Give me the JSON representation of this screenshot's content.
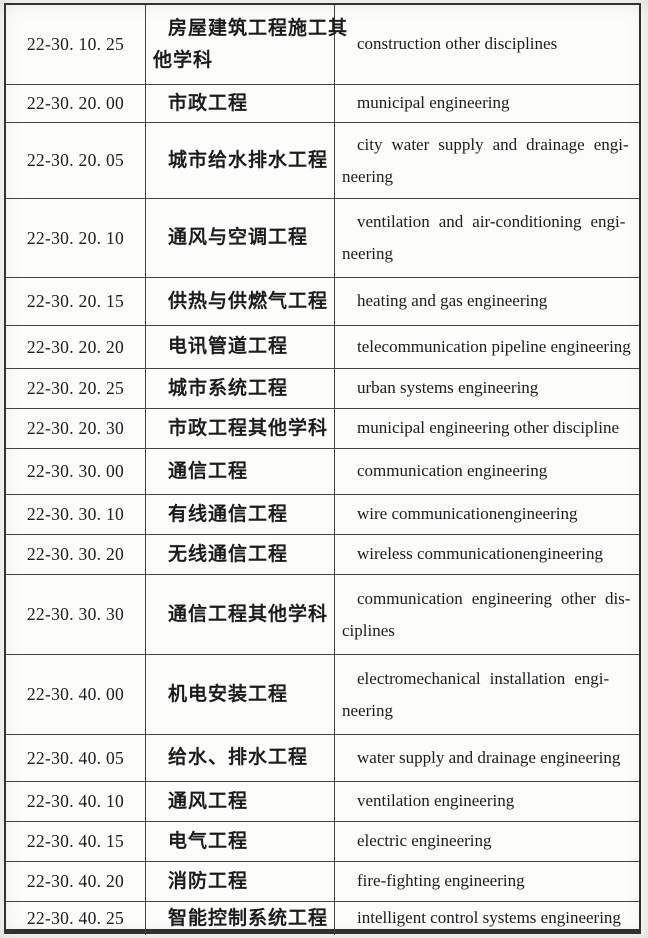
{
  "table": {
    "rows": [
      {
        "code": "22-30. 10. 25",
        "zh_lines": [
          "房屋建筑工程施工其",
          "他学科"
        ],
        "en_lines": [
          "construction other disciplines"
        ]
      },
      {
        "code": "22-30. 20. 00",
        "zh_lines": [
          "市政工程"
        ],
        "en_lines": [
          "municipal engineering"
        ]
      },
      {
        "code": "22-30. 20. 05",
        "zh_lines": [
          "城市给水排水工程"
        ],
        "en_lines": [
          "city water supply and drainage engi-",
          "neering"
        ]
      },
      {
        "code": "22-30. 20. 10",
        "zh_lines": [
          "通风与空调工程"
        ],
        "en_lines": [
          "ventilation and air-conditioning engi-",
          "neering"
        ]
      },
      {
        "code": "22-30. 20. 15",
        "zh_lines": [
          "供热与供燃气工程"
        ],
        "en_lines": [
          "heating and gas engineering"
        ]
      },
      {
        "code": "22-30. 20. 20",
        "zh_lines": [
          "电讯管道工程"
        ],
        "en_lines": [
          "telecommunication pipeline engineering"
        ]
      },
      {
        "code": "22-30. 20. 25",
        "zh_lines": [
          "城市系统工程"
        ],
        "en_lines": [
          "urban systems engineering"
        ]
      },
      {
        "code": "22-30. 20. 30",
        "zh_lines": [
          "市政工程其他学科"
        ],
        "en_lines": [
          "municipal engineering other discipline"
        ]
      },
      {
        "code": "22-30. 30. 00",
        "zh_lines": [
          "通信工程"
        ],
        "en_lines": [
          "communication engineering"
        ]
      },
      {
        "code": "22-30. 30. 10",
        "zh_lines": [
          "有线通信工程"
        ],
        "en_lines": [
          "wire communicationengineering"
        ]
      },
      {
        "code": "22-30. 30. 20",
        "zh_lines": [
          "无线通信工程"
        ],
        "en_lines": [
          "wireless communicationengineering"
        ]
      },
      {
        "code": "22-30. 30. 30",
        "zh_lines": [
          "通信工程其他学科"
        ],
        "en_lines": [
          "communication engineering other dis-",
          "ciplines"
        ]
      },
      {
        "code": "22-30. 40. 00",
        "zh_lines": [
          "机电安装工程"
        ],
        "en_lines": [
          "electromechanical installation engi-",
          "neering"
        ]
      },
      {
        "code": "22-30. 40. 05",
        "zh_lines": [
          "给水、排水工程"
        ],
        "en_lines": [
          "water supply and drainage engineering"
        ]
      },
      {
        "code": "22-30. 40. 10",
        "zh_lines": [
          "通风工程"
        ],
        "en_lines": [
          "ventilation engineering"
        ]
      },
      {
        "code": "22-30. 40. 15",
        "zh_lines": [
          "电气工程"
        ],
        "en_lines": [
          "electric engineering"
        ]
      },
      {
        "code": "22-30. 40. 20",
        "zh_lines": [
          "消防工程"
        ],
        "en_lines": [
          "fire-fighting engineering"
        ]
      },
      {
        "code": "22-30. 40. 25",
        "zh_lines": [
          "智能控制系统工程"
        ],
        "en_lines": [
          "intelligent control systems engineering"
        ]
      }
    ]
  },
  "colors": {
    "paper": "#fbfbf8",
    "border": "#2d2d2b",
    "inner_line": "#43423e",
    "text": "#1c1c1c"
  }
}
